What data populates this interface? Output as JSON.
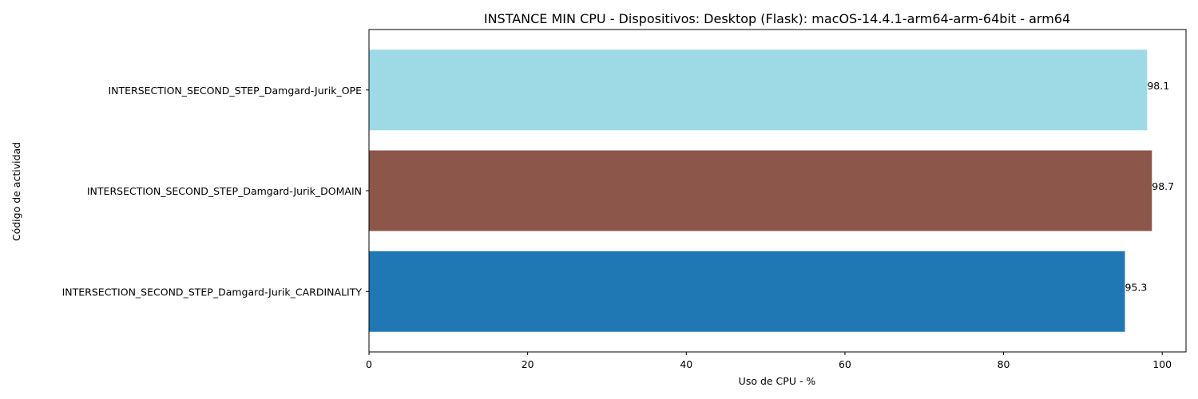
{
  "chart_data": {
    "type": "bar",
    "orientation": "horizontal",
    "title": "INSTANCE MIN CPU - Dispositivos: Desktop (Flask): macOS-14.4.1-arm64-arm-64bit - arm64",
    "xlabel": "Uso de CPU - %",
    "ylabel": "Código de actividad",
    "xlim": [
      0,
      103
    ],
    "xticks": [
      0,
      20,
      40,
      60,
      80,
      100
    ],
    "categories": [
      "INTERSECTION_SECOND_STEP_Damgard-Jurik_CARDINALITY",
      "INTERSECTION_SECOND_STEP_Damgard-Jurik_DOMAIN",
      "INTERSECTION_SECOND_STEP_Damgard-Jurik_OPE"
    ],
    "values": [
      95.3,
      98.7,
      98.1
    ],
    "data_labels": [
      "95.3",
      "98.7",
      "98.1"
    ],
    "colors": [
      "#1f77b4",
      "#8c564b",
      "#9edae5"
    ],
    "grid": false,
    "legend": "none"
  }
}
